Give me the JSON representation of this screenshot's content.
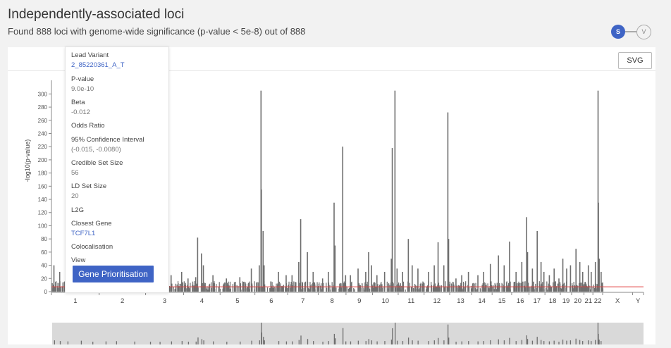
{
  "header": {
    "title": "Independently-associated loci",
    "subtitle": "Found 888 loci with genome-wide significance (p-value < 5e-8) out of 888",
    "toggle_s": "S",
    "toggle_v": "V"
  },
  "toolbar": {
    "svg_label": "SVG"
  },
  "tooltip": {
    "lead_variant_label": "Lead Variant",
    "lead_variant_value": "2_85220361_A_T",
    "pvalue_label": "P-value",
    "pvalue_value": "9.0e-10",
    "beta_label": "Beta",
    "beta_value": "-0.012",
    "odds_ratio_label": "Odds Ratio",
    "ci_label": "95% Confidence Interval",
    "ci_value": "(-0.015, -0.0080)",
    "credible_set_label": "Credible Set Size",
    "credible_set_value": "56",
    "ld_set_label": "LD Set Size",
    "ld_set_value": "20",
    "l2g_label": "L2G",
    "closest_gene_label": "Closest Gene",
    "closest_gene_value": "TCF7L1",
    "colocalisation_label": "Colocalisation",
    "view_label": "View",
    "gene_prioritisation_label": "Gene Prioritisation"
  },
  "colors": {
    "accent": "#3f64c5",
    "bar": "#6e6e6e",
    "threshold": "#e04040",
    "minimap_bg": "#d9d9d9"
  },
  "chart_data": {
    "type": "bar",
    "title": "",
    "xlabel": "",
    "ylabel": "-log10(p-value)",
    "ylim": [
      0,
      310
    ],
    "yticks": [
      0,
      20,
      40,
      60,
      80,
      100,
      120,
      140,
      160,
      180,
      200,
      220,
      240,
      260,
      280,
      300
    ],
    "threshold": 7.3,
    "chromosomes": [
      "1",
      "2",
      "3",
      "4",
      "5",
      "6",
      "7",
      "8",
      "9",
      "10",
      "11",
      "12",
      "13",
      "14",
      "15",
      "16",
      "17",
      "18",
      "19",
      "20",
      "21",
      "22",
      "X",
      "Y"
    ],
    "chromosome_lengths_mb": [
      248.9,
      242.2,
      198.3,
      190.2,
      181.5,
      170.8,
      159.3,
      145.1,
      138.4,
      133.8,
      135.1,
      133.3,
      114.4,
      107.0,
      102.0,
      90.3,
      83.3,
      80.4,
      58.6,
      64.4,
      46.7,
      50.8,
      156.0,
      57.2
    ],
    "peaks": [
      {
        "chr": "1",
        "x": 10,
        "y": 40
      },
      {
        "chr": "1",
        "x": 40,
        "y": 30
      },
      {
        "chr": "1",
        "x": 80,
        "y": 25
      },
      {
        "chr": "1",
        "x": 150,
        "y": 35
      },
      {
        "chr": "1",
        "x": 210,
        "y": 20
      },
      {
        "chr": "2",
        "x": 30,
        "y": 25
      },
      {
        "chr": "2",
        "x": 85,
        "y": 28
      },
      {
        "chr": "2",
        "x": 180,
        "y": 22
      },
      {
        "chr": "3",
        "x": 20,
        "y": 20
      },
      {
        "chr": "3",
        "x": 70,
        "y": 18
      },
      {
        "chr": "3",
        "x": 130,
        "y": 25
      },
      {
        "chr": "3",
        "x": 185,
        "y": 30
      },
      {
        "chr": "4",
        "x": 20,
        "y": 20
      },
      {
        "chr": "4",
        "x": 60,
        "y": 22
      },
      {
        "chr": "4",
        "x": 70,
        "y": 82
      },
      {
        "chr": "4",
        "x": 90,
        "y": 58
      },
      {
        "chr": "4",
        "x": 100,
        "y": 40
      },
      {
        "chr": "4",
        "x": 150,
        "y": 25
      },
      {
        "chr": "5",
        "x": 30,
        "y": 20
      },
      {
        "chr": "5",
        "x": 100,
        "y": 22
      },
      {
        "chr": "5",
        "x": 160,
        "y": 35
      },
      {
        "chr": "6",
        "x": 20,
        "y": 40
      },
      {
        "chr": "6",
        "x": 29,
        "y": 305
      },
      {
        "chr": "6",
        "x": 31,
        "y": 155
      },
      {
        "chr": "6",
        "x": 40,
        "y": 92
      },
      {
        "chr": "6",
        "x": 45,
        "y": 40
      },
      {
        "chr": "6",
        "x": 120,
        "y": 30
      },
      {
        "chr": "6",
        "x": 160,
        "y": 25
      },
      {
        "chr": "7",
        "x": 20,
        "y": 25
      },
      {
        "chr": "7",
        "x": 55,
        "y": 45
      },
      {
        "chr": "7",
        "x": 65,
        "y": 110
      },
      {
        "chr": "7",
        "x": 100,
        "y": 60
      },
      {
        "chr": "7",
        "x": 130,
        "y": 30
      },
      {
        "chr": "8",
        "x": 20,
        "y": 20
      },
      {
        "chr": "8",
        "x": 50,
        "y": 30
      },
      {
        "chr": "8",
        "x": 80,
        "y": 135
      },
      {
        "chr": "8",
        "x": 85,
        "y": 70
      },
      {
        "chr": "8",
        "x": 125,
        "y": 220
      },
      {
        "chr": "8",
        "x": 140,
        "y": 25
      },
      {
        "chr": "9",
        "x": 20,
        "y": 25
      },
      {
        "chr": "9",
        "x": 60,
        "y": 35
      },
      {
        "chr": "9",
        "x": 100,
        "y": 30
      },
      {
        "chr": "9",
        "x": 115,
        "y": 60
      },
      {
        "chr": "9",
        "x": 130,
        "y": 40
      },
      {
        "chr": "10",
        "x": 20,
        "y": 25
      },
      {
        "chr": "10",
        "x": 60,
        "y": 30
      },
      {
        "chr": "10",
        "x": 95,
        "y": 50
      },
      {
        "chr": "10",
        "x": 100,
        "y": 218
      },
      {
        "chr": "10",
        "x": 114,
        "y": 305
      },
      {
        "chr": "10",
        "x": 125,
        "y": 35
      },
      {
        "chr": "11",
        "x": 20,
        "y": 30
      },
      {
        "chr": "11",
        "x": 50,
        "y": 80
      },
      {
        "chr": "11",
        "x": 70,
        "y": 40
      },
      {
        "chr": "11",
        "x": 100,
        "y": 35
      },
      {
        "chr": "12",
        "x": 20,
        "y": 30
      },
      {
        "chr": "12",
        "x": 50,
        "y": 40
      },
      {
        "chr": "12",
        "x": 70,
        "y": 75
      },
      {
        "chr": "12",
        "x": 100,
        "y": 40
      },
      {
        "chr": "12",
        "x": 121,
        "y": 272
      },
      {
        "chr": "12",
        "x": 125,
        "y": 80
      },
      {
        "chr": "13",
        "x": 30,
        "y": 20
      },
      {
        "chr": "13",
        "x": 60,
        "y": 25
      },
      {
        "chr": "13",
        "x": 95,
        "y": 30
      },
      {
        "chr": "14",
        "x": 30,
        "y": 25
      },
      {
        "chr": "14",
        "x": 60,
        "y": 30
      },
      {
        "chr": "14",
        "x": 95,
        "y": 42
      },
      {
        "chr": "15",
        "x": 30,
        "y": 55
      },
      {
        "chr": "15",
        "x": 60,
        "y": 40
      },
      {
        "chr": "15",
        "x": 88,
        "y": 76
      },
      {
        "chr": "16",
        "x": 20,
        "y": 30
      },
      {
        "chr": "16",
        "x": 50,
        "y": 45
      },
      {
        "chr": "16",
        "x": 75,
        "y": 113
      },
      {
        "chr": "16",
        "x": 80,
        "y": 60
      },
      {
        "chr": "17",
        "x": 15,
        "y": 35
      },
      {
        "chr": "17",
        "x": 40,
        "y": 92
      },
      {
        "chr": "17",
        "x": 60,
        "y": 45
      },
      {
        "chr": "17",
        "x": 75,
        "y": 30
      },
      {
        "chr": "18",
        "x": 20,
        "y": 25
      },
      {
        "chr": "18",
        "x": 45,
        "y": 35
      },
      {
        "chr": "18",
        "x": 70,
        "y": 20
      },
      {
        "chr": "19",
        "x": 10,
        "y": 50
      },
      {
        "chr": "19",
        "x": 30,
        "y": 35
      },
      {
        "chr": "19",
        "x": 50,
        "y": 40
      },
      {
        "chr": "20",
        "x": 20,
        "y": 65
      },
      {
        "chr": "20",
        "x": 40,
        "y": 45
      },
      {
        "chr": "20",
        "x": 55,
        "y": 30
      },
      {
        "chr": "21",
        "x": 20,
        "y": 40
      },
      {
        "chr": "21",
        "x": 35,
        "y": 30
      },
      {
        "chr": "22",
        "x": 10,
        "y": 45
      },
      {
        "chr": "22",
        "x": 24,
        "y": 305
      },
      {
        "chr": "22",
        "x": 26,
        "y": 135
      },
      {
        "chr": "22",
        "x": 30,
        "y": 50
      },
      {
        "chr": "22",
        "x": 40,
        "y": 30
      }
    ]
  }
}
